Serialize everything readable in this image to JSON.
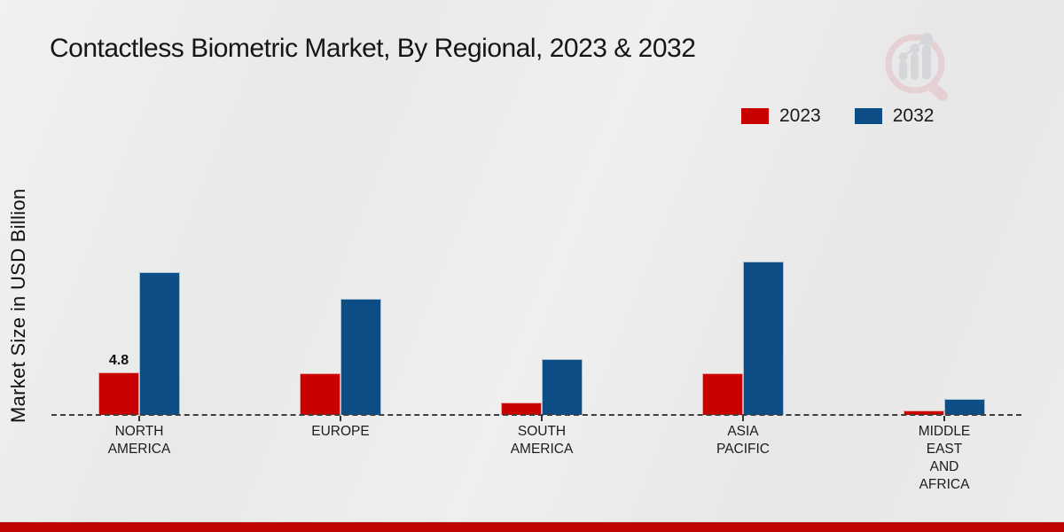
{
  "title": "Contactless Biometric Market, By Regional, 2023 & 2032",
  "y_axis": {
    "label": "Market Size in USD Billion"
  },
  "legend": {
    "items": [
      {
        "label": "2023",
        "color": "#c80101"
      },
      {
        "label": "2032",
        "color": "#0d4d85"
      }
    ]
  },
  "watermark": {
    "icon": "market-research-future-logo"
  },
  "footer": {
    "color": "#bf0404"
  },
  "chart_data": {
    "type": "bar",
    "title": "Contactless Biometric Market, By Regional, 2023 & 2032",
    "ylabel": "Market Size in USD Billion",
    "xlabel": "",
    "grid": "off",
    "legend_position": "top-right",
    "axis_style": "dashed-zero-baseline-only",
    "ylim": [
      0,
      18
    ],
    "categories": [
      "NORTH AMERICA",
      "EUROPE",
      "SOUTH AMERICA",
      "ASIA PACIFIC",
      "MIDDLE EAST AND AFRICA"
    ],
    "category_display_lines": [
      [
        "NORTH",
        "AMERICA"
      ],
      [
        "EUROPE"
      ],
      [
        "SOUTH",
        "AMERICA"
      ],
      [
        "ASIA",
        "PACIFIC"
      ],
      [
        "MIDDLE",
        "EAST",
        "AND",
        "AFRICA"
      ]
    ],
    "series": [
      {
        "name": "2023",
        "color": "#c80101",
        "values": [
          4.8,
          4.7,
          1.4,
          4.7,
          0.5
        ]
      },
      {
        "name": "2032",
        "color": "#0d4d85",
        "values": [
          15.9,
          13.0,
          6.2,
          17.1,
          1.8
        ]
      }
    ],
    "data_labels": [
      {
        "series": "2023",
        "category_index": 0,
        "text": "4.8"
      }
    ]
  }
}
